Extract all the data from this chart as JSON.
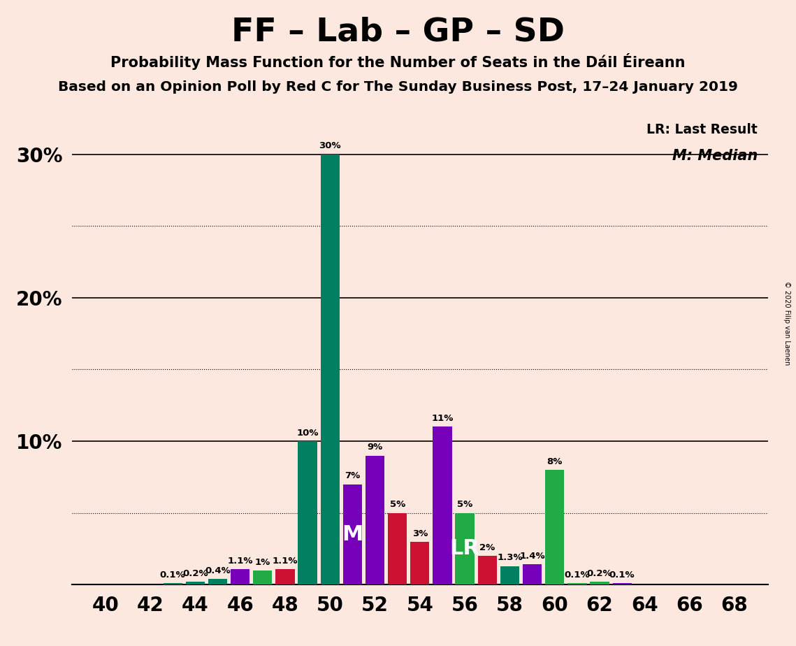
{
  "title": "FF – Lab – GP – SD",
  "subtitle1": "Probability Mass Function for the Number of Seats in the Dáil Éireann",
  "subtitle2": "Based on an Opinion Poll by Red C for The Sunday Business Post, 17–24 January 2019",
  "copyright": "© 2020 Filip van Laenen",
  "lr_label": "LR: Last Result",
  "m_label": "M: Median",
  "background_color": "#fce8df",
  "seats": [
    40,
    41,
    42,
    43,
    44,
    45,
    46,
    47,
    48,
    49,
    50,
    51,
    52,
    53,
    54,
    55,
    56,
    57,
    58,
    59,
    60,
    61,
    62,
    63,
    64,
    65,
    66,
    67,
    68
  ],
  "values": [
    0.0,
    0.0,
    0.0,
    0.1,
    0.2,
    0.4,
    1.1,
    1.0,
    1.1,
    10.0,
    30.0,
    7.0,
    9.0,
    5.0,
    3.0,
    11.0,
    5.0,
    2.0,
    1.3,
    1.4,
    8.0,
    0.1,
    0.2,
    0.1,
    0.0,
    0.0,
    0.0,
    0.0,
    0.0
  ],
  "bar_colors": [
    "#008060",
    "#008060",
    "#008060",
    "#008060",
    "#008060",
    "#008060",
    "#7700bb",
    "#22aa44",
    "#cc1133",
    "#008060",
    "#008060",
    "#7700bb",
    "#7700bb",
    "#cc1133",
    "#cc1133",
    "#7700bb",
    "#22aa44",
    "#cc1133",
    "#008060",
    "#7700bb",
    "#22aa44",
    "#22aa44",
    "#22aa44",
    "#7700bb",
    "#22aa44",
    "#22aa44",
    "#22aa44",
    "#22aa44",
    "#22aa44"
  ],
  "median_seat": 51,
  "lr_seat": 56,
  "ylim_max": 33,
  "solid_gridlines": [
    10,
    20,
    30
  ],
  "dotted_gridlines": [
    5,
    15,
    25
  ],
  "xlabel_seats": [
    40,
    42,
    44,
    46,
    48,
    50,
    52,
    54,
    56,
    58,
    60,
    62,
    64,
    66,
    68
  ]
}
